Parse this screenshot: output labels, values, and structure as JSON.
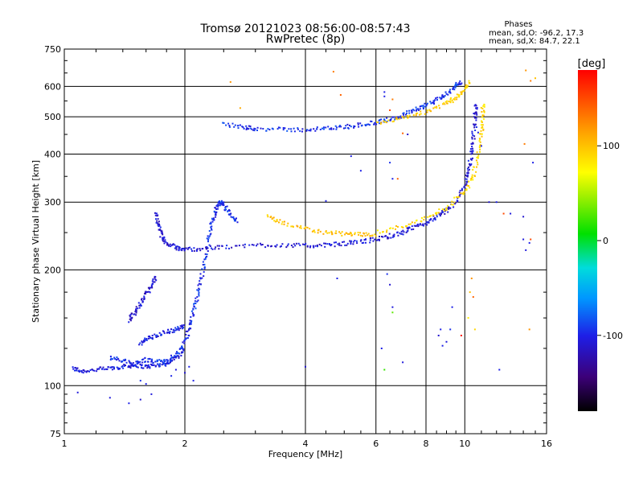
{
  "chart_data": {
    "type": "scatter",
    "title": "Tromsø 20121023 08:56:00-08:57:43",
    "subtitle": "RwPretec (8p)",
    "xlabel": "Frequency [MHz]",
    "ylabel": "Stationary phase Virtual Height [km]",
    "x_scale": "log",
    "y_scale": "log",
    "xlim": [
      1,
      16
    ],
    "ylim": [
      75,
      750
    ],
    "x_ticks": [
      1,
      2,
      4,
      6,
      8,
      10,
      16
    ],
    "x_tick_labels": [
      "1",
      "2",
      "4",
      "6",
      "8",
      "10",
      "16"
    ],
    "y_ticks": [
      75,
      100,
      200,
      300,
      400,
      500,
      600,
      750
    ],
    "y_tick_labels": [
      "75",
      "100",
      "200",
      "300",
      "400",
      "500",
      "600",
      "750"
    ],
    "grid": true,
    "phases": {
      "title": "Phases",
      "line_o": "mean, sd,O: -96.2, 17.3",
      "line_x": "mean, sd,X:  84.7, 22.1"
    },
    "colorbar": {
      "label": "[deg]",
      "range": [
        -180,
        180
      ],
      "ticks": [
        100,
        0,
        -100
      ],
      "tick_labels": [
        "100",
        "0",
        "-100"
      ]
    },
    "traces": [
      {
        "phase": -105,
        "points": [
          [
            1.05,
            111
          ],
          [
            1.1,
            109
          ],
          [
            1.2,
            110
          ],
          [
            1.3,
            111
          ],
          [
            1.4,
            112
          ],
          [
            1.5,
            113
          ],
          [
            1.6,
            112
          ],
          [
            1.7,
            113
          ],
          [
            1.8,
            114
          ],
          [
            1.9,
            118
          ],
          [
            2.0,
            125
          ]
        ]
      },
      {
        "phase": -95,
        "points": [
          [
            1.3,
            118
          ],
          [
            1.4,
            116
          ],
          [
            1.5,
            114
          ],
          [
            1.6,
            117
          ],
          [
            1.7,
            115
          ],
          [
            1.8,
            116
          ],
          [
            1.9,
            120
          ],
          [
            2.0,
            130
          ],
          [
            2.05,
            140
          ],
          [
            2.1,
            155
          ],
          [
            2.15,
            170
          ],
          [
            2.2,
            190
          ],
          [
            2.25,
            215
          ],
          [
            2.3,
            245
          ],
          [
            2.35,
            270
          ],
          [
            2.4,
            290
          ],
          [
            2.45,
            300
          ],
          [
            2.5,
            295
          ],
          [
            2.6,
            280
          ],
          [
            2.7,
            265
          ]
        ]
      },
      {
        "phase": -110,
        "points": [
          [
            1.45,
            148
          ],
          [
            1.5,
            155
          ],
          [
            1.55,
            163
          ],
          [
            1.6,
            172
          ],
          [
            1.65,
            182
          ],
          [
            1.7,
            192
          ]
        ]
      },
      {
        "phase": -100,
        "points": [
          [
            1.55,
            128
          ],
          [
            1.6,
            132
          ],
          [
            1.7,
            135
          ],
          [
            1.8,
            138
          ],
          [
            1.9,
            140
          ],
          [
            2.0,
            143
          ]
        ]
      },
      {
        "phase": -108,
        "points": [
          [
            1.7,
            280
          ],
          [
            1.72,
            260
          ],
          [
            1.75,
            245
          ],
          [
            1.8,
            235
          ],
          [
            1.9,
            228
          ],
          [
            2.0,
            226
          ],
          [
            2.2,
            227
          ],
          [
            2.5,
            229
          ],
          [
            3.0,
            232
          ],
          [
            3.5,
            232
          ],
          [
            4.0,
            231
          ],
          [
            4.5,
            232
          ],
          [
            5.0,
            234
          ],
          [
            5.5,
            237
          ],
          [
            6.0,
            240
          ],
          [
            6.5,
            245
          ],
          [
            7.0,
            250
          ],
          [
            7.5,
            258
          ],
          [
            8.0,
            265
          ],
          [
            8.5,
            275
          ],
          [
            9.0,
            285
          ],
          [
            9.5,
            300
          ],
          [
            10.0,
            330
          ],
          [
            10.2,
            360
          ],
          [
            10.4,
            400
          ],
          [
            10.5,
            440
          ],
          [
            10.6,
            500
          ],
          [
            10.65,
            540
          ]
        ]
      },
      {
        "phase": -95,
        "points": [
          [
            2.5,
            478
          ],
          [
            2.8,
            470
          ],
          [
            3.0,
            466
          ],
          [
            3.5,
            463
          ],
          [
            4.0,
            463
          ],
          [
            4.5,
            466
          ],
          [
            5.0,
            470
          ],
          [
            5.5,
            477
          ],
          [
            6.0,
            483
          ],
          [
            6.5,
            492
          ],
          [
            7.0,
            505
          ],
          [
            7.5,
            520
          ],
          [
            8.0,
            535
          ],
          [
            8.5,
            553
          ],
          [
            9.0,
            575
          ],
          [
            9.5,
            600
          ],
          [
            9.8,
            620
          ]
        ]
      },
      {
        "phase": 100,
        "points": [
          [
            3.2,
            275
          ],
          [
            3.5,
            265
          ],
          [
            4.0,
            256
          ],
          [
            4.5,
            250
          ],
          [
            5.0,
            248
          ],
          [
            5.5,
            247
          ],
          [
            6.0,
            248
          ]
        ]
      },
      {
        "phase": 90,
        "points": [
          [
            6.0,
            250
          ],
          [
            7.0,
            260
          ],
          [
            8.0,
            272
          ],
          [
            9.0,
            290
          ],
          [
            10.0,
            320
          ],
          [
            10.5,
            350
          ],
          [
            10.8,
            400
          ],
          [
            11.0,
            450
          ],
          [
            11.1,
            500
          ],
          [
            11.1,
            540
          ]
        ]
      },
      {
        "phase": 95,
        "points": [
          [
            6.0,
            483
          ],
          [
            7.0,
            498
          ],
          [
            8.0,
            515
          ],
          [
            9.0,
            540
          ],
          [
            9.5,
            560
          ],
          [
            10.0,
            585
          ],
          [
            10.3,
            620
          ]
        ]
      }
    ],
    "scatter_points": [
      [
        1.08,
        96,
        -105
      ],
      [
        1.3,
        93,
        -105
      ],
      [
        1.45,
        90,
        -100
      ],
      [
        1.55,
        92,
        -110
      ],
      [
        1.65,
        95,
        -105
      ],
      [
        1.55,
        103,
        -95
      ],
      [
        1.6,
        101,
        -100
      ],
      [
        1.85,
        106,
        -98
      ],
      [
        1.9,
        110,
        -105
      ],
      [
        2.0,
        108,
        -110
      ],
      [
        2.1,
        103,
        -100
      ],
      [
        2.05,
        112,
        -100
      ],
      [
        2.6,
        616,
        120
      ],
      [
        2.75,
        527,
        110
      ],
      [
        4.7,
        655,
        130
      ],
      [
        4.9,
        570,
        140
      ],
      [
        6.5,
        380,
        -95
      ],
      [
        6.6,
        345,
        -100
      ],
      [
        6.8,
        345,
        140
      ],
      [
        5.5,
        362,
        -100
      ],
      [
        4.5,
        302,
        -100
      ],
      [
        4.8,
        190,
        -100
      ],
      [
        6.4,
        195,
        -95
      ],
      [
        6.5,
        183,
        -110
      ],
      [
        6.6,
        160,
        -105
      ],
      [
        4.0,
        112,
        -110
      ],
      [
        6.3,
        110,
        20
      ],
      [
        6.6,
        155,
        30
      ],
      [
        6.2,
        125,
        -100
      ],
      [
        7.0,
        115,
        -105
      ],
      [
        8.6,
        135,
        -110
      ],
      [
        8.8,
        127,
        -100
      ],
      [
        9.2,
        140,
        -95
      ],
      [
        9.8,
        135,
        170
      ],
      [
        9.3,
        160,
        -100
      ],
      [
        10.5,
        170,
        140
      ],
      [
        10.4,
        190,
        120
      ],
      [
        10.3,
        175,
        100
      ],
      [
        10.6,
        140,
        90
      ],
      [
        10.2,
        150,
        80
      ],
      [
        11.5,
        300,
        -110
      ],
      [
        12.0,
        300,
        -100
      ],
      [
        13.0,
        280,
        -105
      ],
      [
        12.5,
        280,
        150
      ],
      [
        14.0,
        275,
        -110
      ],
      [
        14.0,
        240,
        -105
      ],
      [
        14.5,
        235,
        -100
      ],
      [
        14.2,
        225,
        -105
      ],
      [
        14.6,
        240,
        150
      ],
      [
        14.2,
        660,
        120
      ],
      [
        14.6,
        620,
        130
      ],
      [
        15.0,
        630,
        100
      ],
      [
        14.1,
        425,
        130
      ],
      [
        14.8,
        380,
        -100
      ],
      [
        12.2,
        110,
        -100
      ],
      [
        14.5,
        140,
        120
      ],
      [
        9.0,
        130,
        -105
      ],
      [
        8.7,
        140,
        -100
      ],
      [
        10.7,
        470,
        -95
      ],
      [
        10.8,
        455,
        -100
      ],
      [
        11.0,
        420,
        -100
      ],
      [
        7.0,
        453,
        140
      ],
      [
        7.2,
        450,
        -110
      ],
      [
        5.2,
        395,
        -100
      ],
      [
        6.5,
        520,
        150
      ],
      [
        6.3,
        565,
        -100
      ],
      [
        6.3,
        580,
        -100
      ],
      [
        6.6,
        555,
        130
      ]
    ]
  }
}
